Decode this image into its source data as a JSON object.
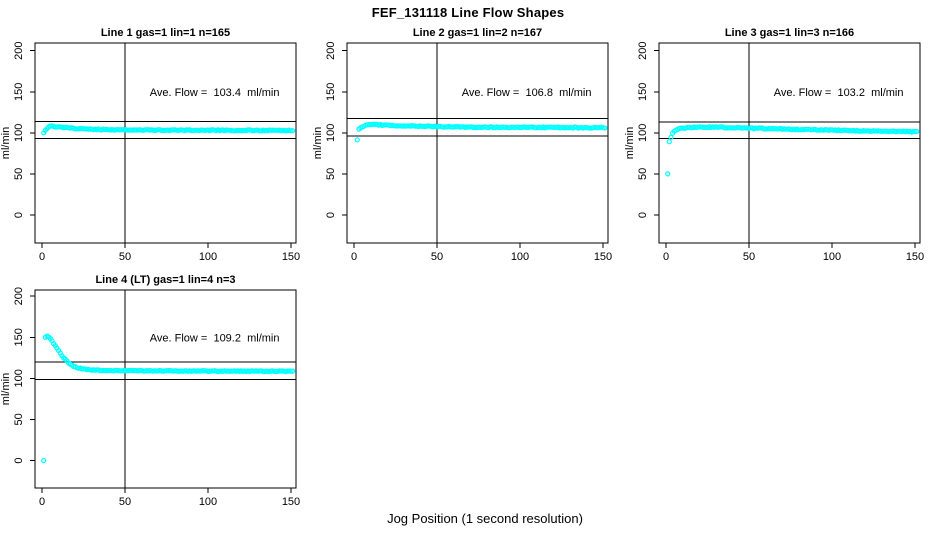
{
  "title": "FEF_131118  Line Flow Shapes",
  "xlabel": "Jog Position (1 second resolution)",
  "colors": {
    "points": "#00FFFF",
    "axis": "#000000",
    "background": "#FFFFFF",
    "text": "#000000"
  },
  "chart_data": {
    "type": "scatter",
    "title": "FEF_131118  Line Flow Shapes",
    "x_axis_label": "Jog Position (1 second resolution)",
    "y_axis_label": "ml/min",
    "x_ticks": [
      0,
      50,
      100,
      150
    ],
    "y_ticks": [
      0,
      50,
      100,
      150,
      200
    ],
    "xlim": [
      -5,
      157
    ],
    "ylim": [
      -35,
      210
    ],
    "grid": false,
    "legend": "none",
    "panels": [
      {
        "title": "Line 1 gas=1 lin=1 n=165",
        "ylabel": "ml/min",
        "annotation": "Ave. Flow =  103.4  ml/min",
        "ave_flow_ml_min": 103.4,
        "n": 165,
        "vline_x": 50,
        "hlines": [
          113.7,
          93.1
        ],
        "noise": 0.6,
        "points": [
          [
            1,
            100.0
          ],
          [
            2,
            103.5
          ],
          [
            3,
            105.5
          ],
          [
            4,
            107.2
          ],
          [
            5,
            107.8
          ],
          [
            6,
            108.0
          ],
          [
            8,
            107.6
          ],
          [
            10,
            107.2
          ],
          [
            12,
            106.8
          ],
          [
            15,
            106.2
          ],
          [
            20,
            105.4
          ],
          [
            25,
            104.8
          ],
          [
            30,
            104.4
          ],
          [
            35,
            104.1
          ],
          [
            40,
            103.9
          ],
          [
            45,
            103.7
          ],
          [
            50,
            103.6
          ],
          [
            60,
            103.4
          ],
          [
            70,
            103.3
          ],
          [
            80,
            103.2
          ],
          [
            90,
            103.2
          ],
          [
            100,
            103.1
          ],
          [
            110,
            103.1
          ],
          [
            120,
            103.0
          ],
          [
            130,
            103.0
          ],
          [
            140,
            102.9
          ],
          [
            151,
            102.9
          ]
        ]
      },
      {
        "title": "Line 2 gas=1 lin=2 n=167",
        "ylabel": "ml/min",
        "annotation": "Ave. Flow =  106.8  ml/min",
        "ave_flow_ml_min": 106.8,
        "n": 167,
        "vline_x": 50,
        "hlines": [
          117.5,
          96.1
        ],
        "noise": 0.6,
        "points": [
          [
            2,
            91.5
          ],
          [
            3,
            104.0
          ],
          [
            4,
            106.0
          ],
          [
            5,
            107.5
          ],
          [
            6,
            108.5
          ],
          [
            7,
            109.2
          ],
          [
            8,
            109.8
          ],
          [
            10,
            110.1
          ],
          [
            12,
            110.1
          ],
          [
            15,
            109.8
          ],
          [
            20,
            109.4
          ],
          [
            25,
            109.0
          ],
          [
            30,
            108.6
          ],
          [
            35,
            108.3
          ],
          [
            40,
            108.0
          ],
          [
            50,
            107.6
          ],
          [
            60,
            107.3
          ],
          [
            70,
            107.1
          ],
          [
            80,
            106.9
          ],
          [
            90,
            106.8
          ],
          [
            100,
            106.7
          ],
          [
            110,
            106.6
          ],
          [
            120,
            106.6
          ],
          [
            130,
            106.5
          ],
          [
            140,
            106.5
          ],
          [
            151,
            106.4
          ]
        ]
      },
      {
        "title": "Line 3 gas=1 lin=3 n=166",
        "ylabel": "ml/min",
        "annotation": "Ave. Flow =  103.2  ml/min",
        "ave_flow_ml_min": 103.2,
        "n": 166,
        "vline_x": 50,
        "hlines": [
          113.5,
          92.9
        ],
        "noise": 0.6,
        "points": [
          [
            1,
            50.0
          ],
          [
            2,
            89.0
          ],
          [
            3,
            95.0
          ],
          [
            4,
            99.0
          ],
          [
            5,
            101.5
          ],
          [
            6,
            103.0
          ],
          [
            7,
            104.2
          ],
          [
            8,
            105.0
          ],
          [
            10,
            105.8
          ],
          [
            12,
            106.2
          ],
          [
            15,
            106.6
          ],
          [
            20,
            106.9
          ],
          [
            25,
            107.0
          ],
          [
            30,
            106.9
          ],
          [
            40,
            106.4
          ],
          [
            50,
            105.9
          ],
          [
            60,
            105.3
          ],
          [
            70,
            104.8
          ],
          [
            80,
            104.2
          ],
          [
            90,
            103.7
          ],
          [
            100,
            103.2
          ],
          [
            110,
            102.8
          ],
          [
            120,
            102.4
          ],
          [
            130,
            102.0
          ],
          [
            140,
            101.7
          ],
          [
            151,
            101.3
          ]
        ]
      },
      {
        "title": "Line 4 (LT) gas=1 lin=4 n=3",
        "ylabel": "ml/min",
        "annotation": "Ave. Flow =  109.2  ml/min",
        "ave_flow_ml_min": 109.2,
        "n": 3,
        "vline_x": 50,
        "hlines": [
          120.1,
          98.3
        ],
        "noise": 0.5,
        "points": [
          [
            1,
            0.0
          ],
          [
            2,
            150.0
          ],
          [
            3,
            151.0
          ],
          [
            4,
            150.2
          ],
          [
            5,
            148.0
          ],
          [
            6,
            145.5
          ],
          [
            7,
            142.5
          ],
          [
            8,
            139.5
          ],
          [
            9,
            136.5
          ],
          [
            10,
            133.5
          ],
          [
            11,
            130.5
          ],
          [
            12,
            127.8
          ],
          [
            13,
            125.3
          ],
          [
            14,
            123.0
          ],
          [
            15,
            121.0
          ],
          [
            16,
            119.2
          ],
          [
            17,
            117.6
          ],
          [
            18,
            116.2
          ],
          [
            19,
            115.0
          ],
          [
            20,
            114.0
          ],
          [
            22,
            112.6
          ],
          [
            24,
            111.6
          ],
          [
            26,
            111.0
          ],
          [
            28,
            110.5
          ],
          [
            30,
            110.2
          ],
          [
            35,
            109.8
          ],
          [
            40,
            109.6
          ],
          [
            45,
            109.5
          ],
          [
            50,
            109.4
          ],
          [
            60,
            109.2
          ],
          [
            70,
            109.1
          ],
          [
            80,
            109.0
          ],
          [
            90,
            108.9
          ],
          [
            100,
            108.9
          ],
          [
            110,
            108.8
          ],
          [
            120,
            108.8
          ],
          [
            130,
            108.7
          ],
          [
            140,
            108.7
          ],
          [
            151,
            108.6
          ]
        ]
      }
    ]
  }
}
